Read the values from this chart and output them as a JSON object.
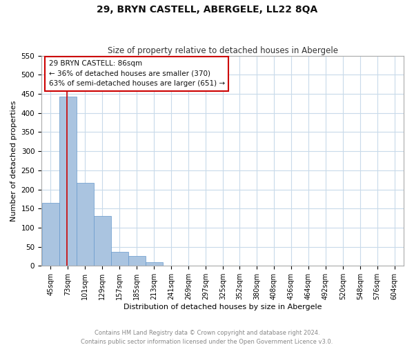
{
  "title": "29, BRYN CASTELL, ABERGELE, LL22 8QA",
  "subtitle": "Size of property relative to detached houses in Abergele",
  "xlabel": "Distribution of detached houses by size in Abergele",
  "ylabel": "Number of detached properties",
  "footer_line1": "Contains HM Land Registry data © Crown copyright and database right 2024.",
  "footer_line2": "Contains public sector information licensed under the Open Government Licence v3.0.",
  "bin_labels": [
    "45sqm",
    "73sqm",
    "101sqm",
    "129sqm",
    "157sqm",
    "185sqm",
    "213sqm",
    "241sqm",
    "269sqm",
    "297sqm",
    "325sqm",
    "352sqm",
    "380sqm",
    "408sqm",
    "436sqm",
    "464sqm",
    "492sqm",
    "520sqm",
    "548sqm",
    "576sqm",
    "604sqm"
  ],
  "bar_heights": [
    165,
    443,
    218,
    130,
    37,
    26,
    9,
    1,
    0,
    0,
    0,
    1,
    0,
    0,
    0,
    0,
    0,
    0,
    0,
    0,
    1
  ],
  "bar_color": "#aac4e0",
  "bar_edge_color": "#6699cc",
  "grid_color": "#c8daea",
  "marker_line_color": "#cc0000",
  "annotation_title": "29 BRYN CASTELL: 86sqm",
  "annotation_line1": "← 36% of detached houses are smaller (370)",
  "annotation_line2": "63% of semi-detached houses are larger (651) →",
  "annotation_box_color": "#cc0000",
  "ylim": [
    0,
    550
  ],
  "yticks": [
    0,
    50,
    100,
    150,
    200,
    250,
    300,
    350,
    400,
    450,
    500,
    550
  ],
  "bin_edges": [
    45,
    73,
    101,
    129,
    157,
    185,
    213,
    241,
    269,
    297,
    325,
    352,
    380,
    408,
    436,
    464,
    492,
    520,
    548,
    576,
    604
  ],
  "property_sqm": 86,
  "bin_width": 28
}
